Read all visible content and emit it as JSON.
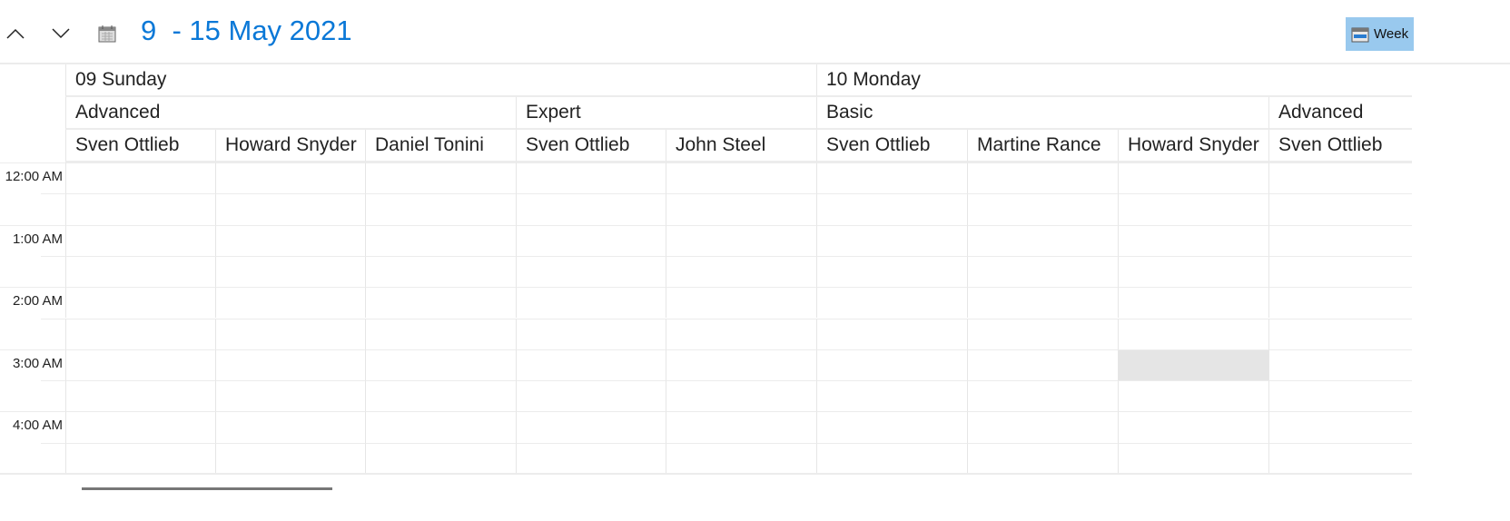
{
  "header": {
    "title": "9  - 15 May 2021",
    "view_label": "Week",
    "accent": "#0a78d7"
  },
  "days": [
    {
      "label": "09 Sunday"
    },
    {
      "label": "10 Monday"
    }
  ],
  "groups": [
    {
      "label": "Advanced"
    },
    {
      "label": "Expert"
    },
    {
      "label": "Basic"
    },
    {
      "label": "Advanced"
    }
  ],
  "resources": [
    {
      "label": "Sven Ottlieb"
    },
    {
      "label": "Howard Snyder"
    },
    {
      "label": "Daniel Tonini"
    },
    {
      "label": "Sven Ottlieb"
    },
    {
      "label": "John Steel"
    },
    {
      "label": "Sven Ottlieb"
    },
    {
      "label": "Martine Rance"
    },
    {
      "label": "Howard Snyder"
    },
    {
      "label": "Sven Ottlieb"
    }
  ],
  "times": [
    {
      "label": "12:00 AM"
    },
    {
      "label": "1:00 AM"
    },
    {
      "label": "2:00 AM"
    },
    {
      "label": "3:00 AM"
    },
    {
      "label": "4:00 AM"
    }
  ],
  "selected_slot": {
    "resource": "Howard Snyder",
    "day": "10 Monday",
    "time": "3:00 AM",
    "color": "#e5e5e5"
  }
}
